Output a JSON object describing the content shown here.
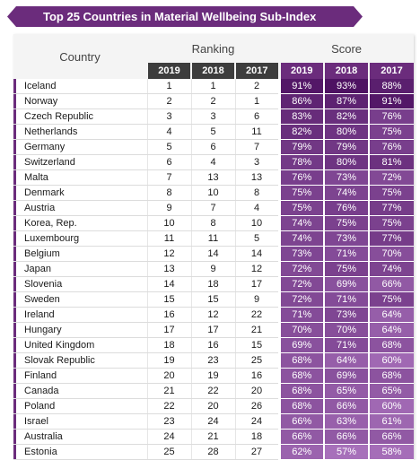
{
  "title": "Top 25 Countries in Material Wellbeing Sub-Index",
  "headers": {
    "country": "Country",
    "ranking": "Ranking",
    "score": "Score",
    "years": [
      "2019",
      "2018",
      "2017"
    ]
  },
  "colors": {
    "banner": "#6b2c7c",
    "header_dark": "#3d3d3d",
    "accent": "#6b2c7c"
  },
  "rows": [
    {
      "country": "Iceland",
      "rank": [
        "1",
        "1",
        "2"
      ],
      "score": [
        "91%",
        "93%",
        "88%"
      ]
    },
    {
      "country": "Norway",
      "rank": [
        "2",
        "2",
        "1"
      ],
      "score": [
        "86%",
        "87%",
        "91%"
      ]
    },
    {
      "country": "Czech Republic",
      "rank": [
        "3",
        "3",
        "6"
      ],
      "score": [
        "83%",
        "82%",
        "76%"
      ]
    },
    {
      "country": "Netherlands",
      "rank": [
        "4",
        "5",
        "11"
      ],
      "score": [
        "82%",
        "80%",
        "75%"
      ]
    },
    {
      "country": "Germany",
      "rank": [
        "5",
        "6",
        "7"
      ],
      "score": [
        "79%",
        "79%",
        "76%"
      ]
    },
    {
      "country": "Switzerland",
      "rank": [
        "6",
        "4",
        "3"
      ],
      "score": [
        "78%",
        "80%",
        "81%"
      ]
    },
    {
      "country": "Malta",
      "rank": [
        "7",
        "13",
        "13"
      ],
      "score": [
        "76%",
        "73%",
        "72%"
      ]
    },
    {
      "country": "Denmark",
      "rank": [
        "8",
        "10",
        "8"
      ],
      "score": [
        "75%",
        "74%",
        "75%"
      ]
    },
    {
      "country": "Austria",
      "rank": [
        "9",
        "7",
        "4"
      ],
      "score": [
        "75%",
        "76%",
        "77%"
      ]
    },
    {
      "country": "Korea, Rep.",
      "rank": [
        "10",
        "8",
        "10"
      ],
      "score": [
        "74%",
        "75%",
        "75%"
      ]
    },
    {
      "country": "Luxembourg",
      "rank": [
        "11",
        "11",
        "5"
      ],
      "score": [
        "74%",
        "73%",
        "77%"
      ]
    },
    {
      "country": "Belgium",
      "rank": [
        "12",
        "14",
        "14"
      ],
      "score": [
        "73%",
        "71%",
        "70%"
      ]
    },
    {
      "country": "Japan",
      "rank": [
        "13",
        "9",
        "12"
      ],
      "score": [
        "72%",
        "75%",
        "74%"
      ]
    },
    {
      "country": "Slovenia",
      "rank": [
        "14",
        "18",
        "17"
      ],
      "score": [
        "72%",
        "69%",
        "66%"
      ]
    },
    {
      "country": "Sweden",
      "rank": [
        "15",
        "15",
        "9"
      ],
      "score": [
        "72%",
        "71%",
        "75%"
      ]
    },
    {
      "country": "Ireland",
      "rank": [
        "16",
        "12",
        "22"
      ],
      "score": [
        "71%",
        "73%",
        "64%"
      ]
    },
    {
      "country": "Hungary",
      "rank": [
        "17",
        "17",
        "21"
      ],
      "score": [
        "70%",
        "70%",
        "64%"
      ]
    },
    {
      "country": "United Kingdom",
      "rank": [
        "18",
        "16",
        "15"
      ],
      "score": [
        "69%",
        "71%",
        "68%"
      ]
    },
    {
      "country": "Slovak Republic",
      "rank": [
        "19",
        "23",
        "25"
      ],
      "score": [
        "68%",
        "64%",
        "60%"
      ]
    },
    {
      "country": "Finland",
      "rank": [
        "20",
        "19",
        "16"
      ],
      "score": [
        "68%",
        "69%",
        "68%"
      ]
    },
    {
      "country": "Canada",
      "rank": [
        "21",
        "22",
        "20"
      ],
      "score": [
        "68%",
        "65%",
        "65%"
      ]
    },
    {
      "country": "Poland",
      "rank": [
        "22",
        "20",
        "26"
      ],
      "score": [
        "68%",
        "66%",
        "60%"
      ]
    },
    {
      "country": "Israel",
      "rank": [
        "23",
        "24",
        "24"
      ],
      "score": [
        "66%",
        "63%",
        "61%"
      ]
    },
    {
      "country": "Australia",
      "rank": [
        "24",
        "21",
        "18"
      ],
      "score": [
        "66%",
        "66%",
        "66%"
      ]
    },
    {
      "country": "Estonia",
      "rank": [
        "25",
        "28",
        "27"
      ],
      "score": [
        "62%",
        "57%",
        "58%"
      ]
    }
  ]
}
